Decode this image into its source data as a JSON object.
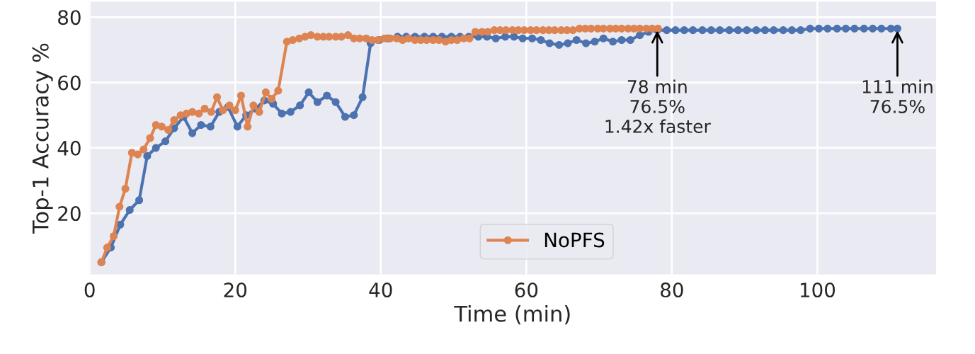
{
  "chart_data": {
    "type": "line",
    "xlabel": "Time (min)",
    "ylabel": "Top-1 Accuracy %",
    "xlim": [
      0,
      116.3
    ],
    "ylim": [
      1.3,
      84.7
    ],
    "xticks": [
      0,
      20,
      40,
      60,
      80,
      100
    ],
    "yticks": [
      20,
      40,
      60,
      80
    ],
    "grid": true,
    "legend": "bottom",
    "marker": "circle",
    "line_style": "solid",
    "series": [
      {
        "color": "#4c72b0",
        "x": [
          1.6,
          2.9,
          4.2,
          5.5,
          6.8,
          7.9,
          9.1,
          10.4,
          11.6,
          12.9,
          14.1,
          15.3,
          16.6,
          17.8,
          19.0,
          20.3,
          21.5,
          22.8,
          24.0,
          25.2,
          26.4,
          27.6,
          28.9,
          30.1,
          31.3,
          32.6,
          33.8,
          35.1,
          36.3,
          37.5,
          38.6,
          39.8,
          41.0,
          42.3,
          43.5,
          44.7,
          46.0,
          47.2,
          48.4,
          49.7,
          50.9,
          52.1,
          53.4,
          54.6,
          55.8,
          57.1,
          58.3,
          59.5,
          60.8,
          62.0,
          63.2,
          64.5,
          65.7,
          66.9,
          68.2,
          69.4,
          70.6,
          71.9,
          73.1,
          74.3,
          75.6,
          76.8,
          78.0,
          79.3,
          80.5,
          81.7,
          82.9,
          84.2,
          85.4,
          86.6,
          87.9,
          89.1,
          90.3,
          91.6,
          92.8,
          94.0,
          95.3,
          96.5,
          97.7,
          99.0,
          100.2,
          101.4,
          102.7,
          103.9,
          105.1,
          106.4,
          107.6,
          108.8,
          110.1,
          111.0
        ],
        "values": [
          5,
          9.5,
          16.5,
          21,
          24,
          37.5,
          40,
          42,
          46,
          49.5,
          44.5,
          47,
          46.5,
          51,
          52.5,
          46.5,
          50,
          52,
          54.5,
          53.5,
          50.5,
          51,
          53,
          57,
          54,
          56,
          54,
          49.5,
          50,
          55.5,
          72,
          73,
          73.5,
          74,
          74,
          74,
          74,
          74,
          74,
          74,
          74,
          74,
          74,
          74,
          73.5,
          74,
          74,
          73.5,
          73.5,
          73,
          72,
          71.5,
          72,
          73,
          72,
          72.5,
          73.5,
          72.5,
          73,
          73,
          74.5,
          75.5,
          76,
          76,
          76,
          76,
          76,
          76,
          76,
          76,
          76,
          76,
          76,
          76,
          76,
          76,
          76,
          76,
          76,
          76.5,
          76.5,
          76.5,
          76.5,
          76.5,
          76.5,
          76.5,
          76.5,
          76.5,
          76.5,
          76.5
        ]
      },
      {
        "name": "NoPFS",
        "color": "#dd8452",
        "x": [
          1.6,
          2.4,
          3.3,
          4.1,
          4.9,
          5.8,
          6.6,
          7.4,
          8.3,
          9.1,
          9.9,
          10.8,
          11.6,
          12.5,
          13.3,
          14.1,
          15.0,
          15.8,
          16.7,
          17.5,
          18.3,
          19.2,
          20.0,
          20.8,
          21.7,
          22.5,
          23.3,
          24.2,
          25.0,
          25.9,
          27.1,
          27.9,
          28.8,
          29.6,
          30.4,
          31.3,
          32.1,
          32.9,
          33.8,
          34.6,
          35.5,
          36.3,
          37.1,
          38.0,
          38.8,
          39.6,
          40.5,
          41.3,
          42.2,
          43.0,
          43.8,
          44.7,
          45.5,
          46.3,
          47.2,
          48.0,
          48.9,
          49.7,
          50.5,
          51.4,
          52.2,
          53.0,
          53.9,
          54.7,
          55.6,
          56.4,
          57.2,
          58.1,
          58.9,
          59.7,
          60.6,
          61.4,
          62.3,
          63.1,
          63.9,
          64.8,
          65.6,
          66.4,
          67.3,
          68.1,
          68.9,
          69.8,
          70.6,
          71.5,
          72.3,
          73.1,
          74.0,
          74.8,
          75.6,
          76.5,
          77.3,
          78.1
        ],
        "values": [
          5,
          9.5,
          13,
          22,
          27.5,
          38.5,
          38,
          39.5,
          43,
          47,
          46.5,
          45.5,
          48.5,
          50,
          50.5,
          51,
          50.5,
          52,
          51,
          55.5,
          51.5,
          53,
          51.5,
          56,
          46.5,
          53,
          51,
          57,
          55,
          57.5,
          72.5,
          73,
          73.5,
          74,
          74.5,
          74,
          74,
          74,
          74,
          74,
          74.5,
          73.5,
          73.5,
          73.5,
          73,
          73,
          73.5,
          73.5,
          73.5,
          73,
          73.5,
          73,
          73,
          73,
          73,
          73,
          72.5,
          73,
          73,
          73.5,
          73.5,
          75.5,
          75.5,
          75.5,
          76,
          76,
          76,
          76,
          76,
          76,
          76,
          76,
          76,
          76,
          76,
          76,
          76,
          76,
          76.5,
          76.5,
          76.5,
          76.5,
          76.5,
          76.5,
          76.5,
          76.5,
          76.5,
          76.5,
          76.5,
          76.5,
          76.5,
          76.5
        ]
      }
    ],
    "annotations": [
      {
        "text": "78 min\n76.5%\n1.42x faster",
        "x": 78,
        "y": 76.5
      },
      {
        "text": "111 min\n76.5%",
        "x": 111,
        "y": 76.5
      }
    ]
  }
}
